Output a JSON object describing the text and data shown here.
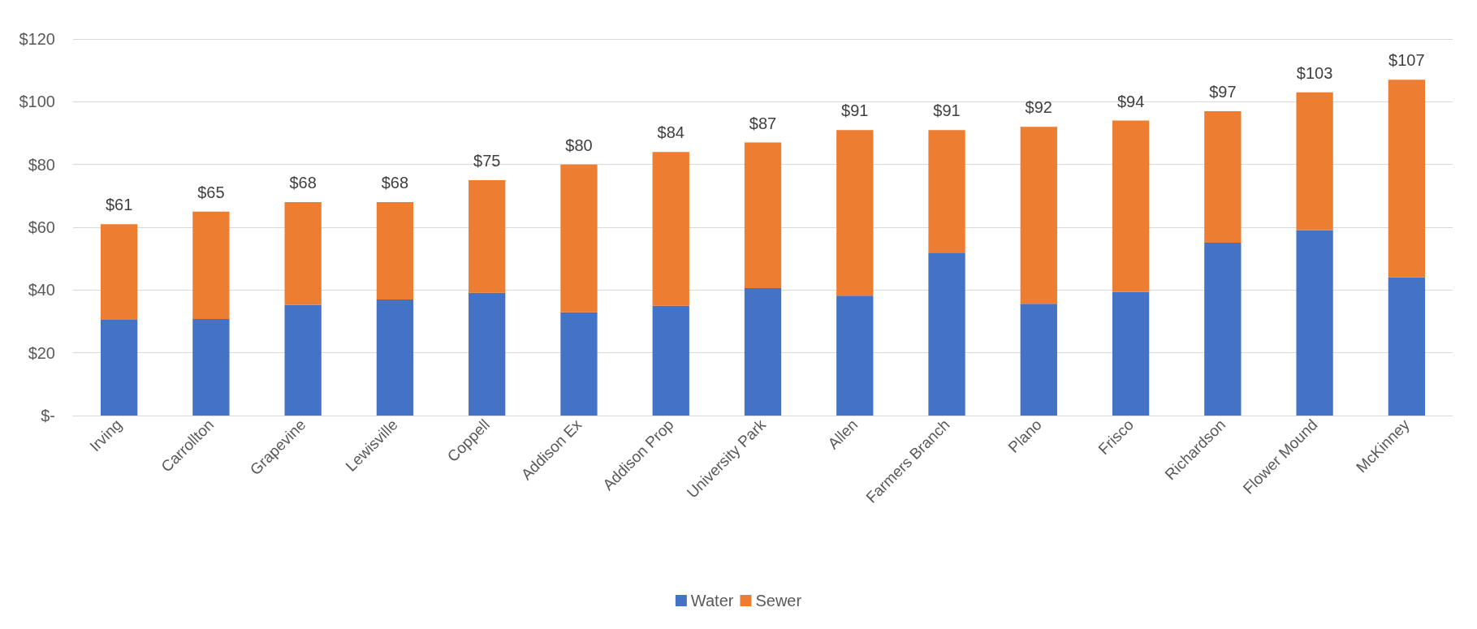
{
  "chart_data": {
    "type": "bar",
    "stacked": true,
    "categories": [
      "Irving",
      "Carrollton",
      "Grapevine",
      "Lewisville",
      "Coppell",
      "Addison Ex",
      "Addison Prop",
      "University Park",
      "Allen",
      "Farmers Branch",
      "Plano",
      "Frisco",
      "Richardson",
      "Flower Mound",
      "McKinney"
    ],
    "series": [
      {
        "name": "Water",
        "color": "#4472c4",
        "values": [
          30.5,
          30.8,
          35.3,
          37,
          39.1,
          32.9,
          35,
          40.6,
          38.2,
          51.9,
          35.6,
          39.4,
          55.1,
          59,
          44.1
        ]
      },
      {
        "name": "Sewer",
        "color": "#ed7d31",
        "values": [
          30.5,
          34.2,
          32.7,
          31,
          35.9,
          47.1,
          49,
          46.4,
          52.8,
          39.1,
          56.4,
          54.6,
          41.9,
          44,
          62.9
        ]
      }
    ],
    "totals": [
      "$61",
      "$65",
      "$68",
      "$68",
      "$75",
      "$80",
      "$84",
      "$87",
      "$91",
      "$91",
      "$92",
      "$94",
      "$97",
      "$103",
      "$107"
    ],
    "ylim": [
      0,
      120
    ],
    "yticks": [
      {
        "value": 0,
        "label": "$-"
      },
      {
        "value": 20,
        "label": "$20"
      },
      {
        "value": 40,
        "label": "$40"
      },
      {
        "value": 60,
        "label": "$60"
      },
      {
        "value": 80,
        "label": "$80"
      },
      {
        "value": 100,
        "label": "$100"
      },
      {
        "value": 120,
        "label": "$120"
      }
    ],
    "grid": "y",
    "legend": "bottom"
  }
}
